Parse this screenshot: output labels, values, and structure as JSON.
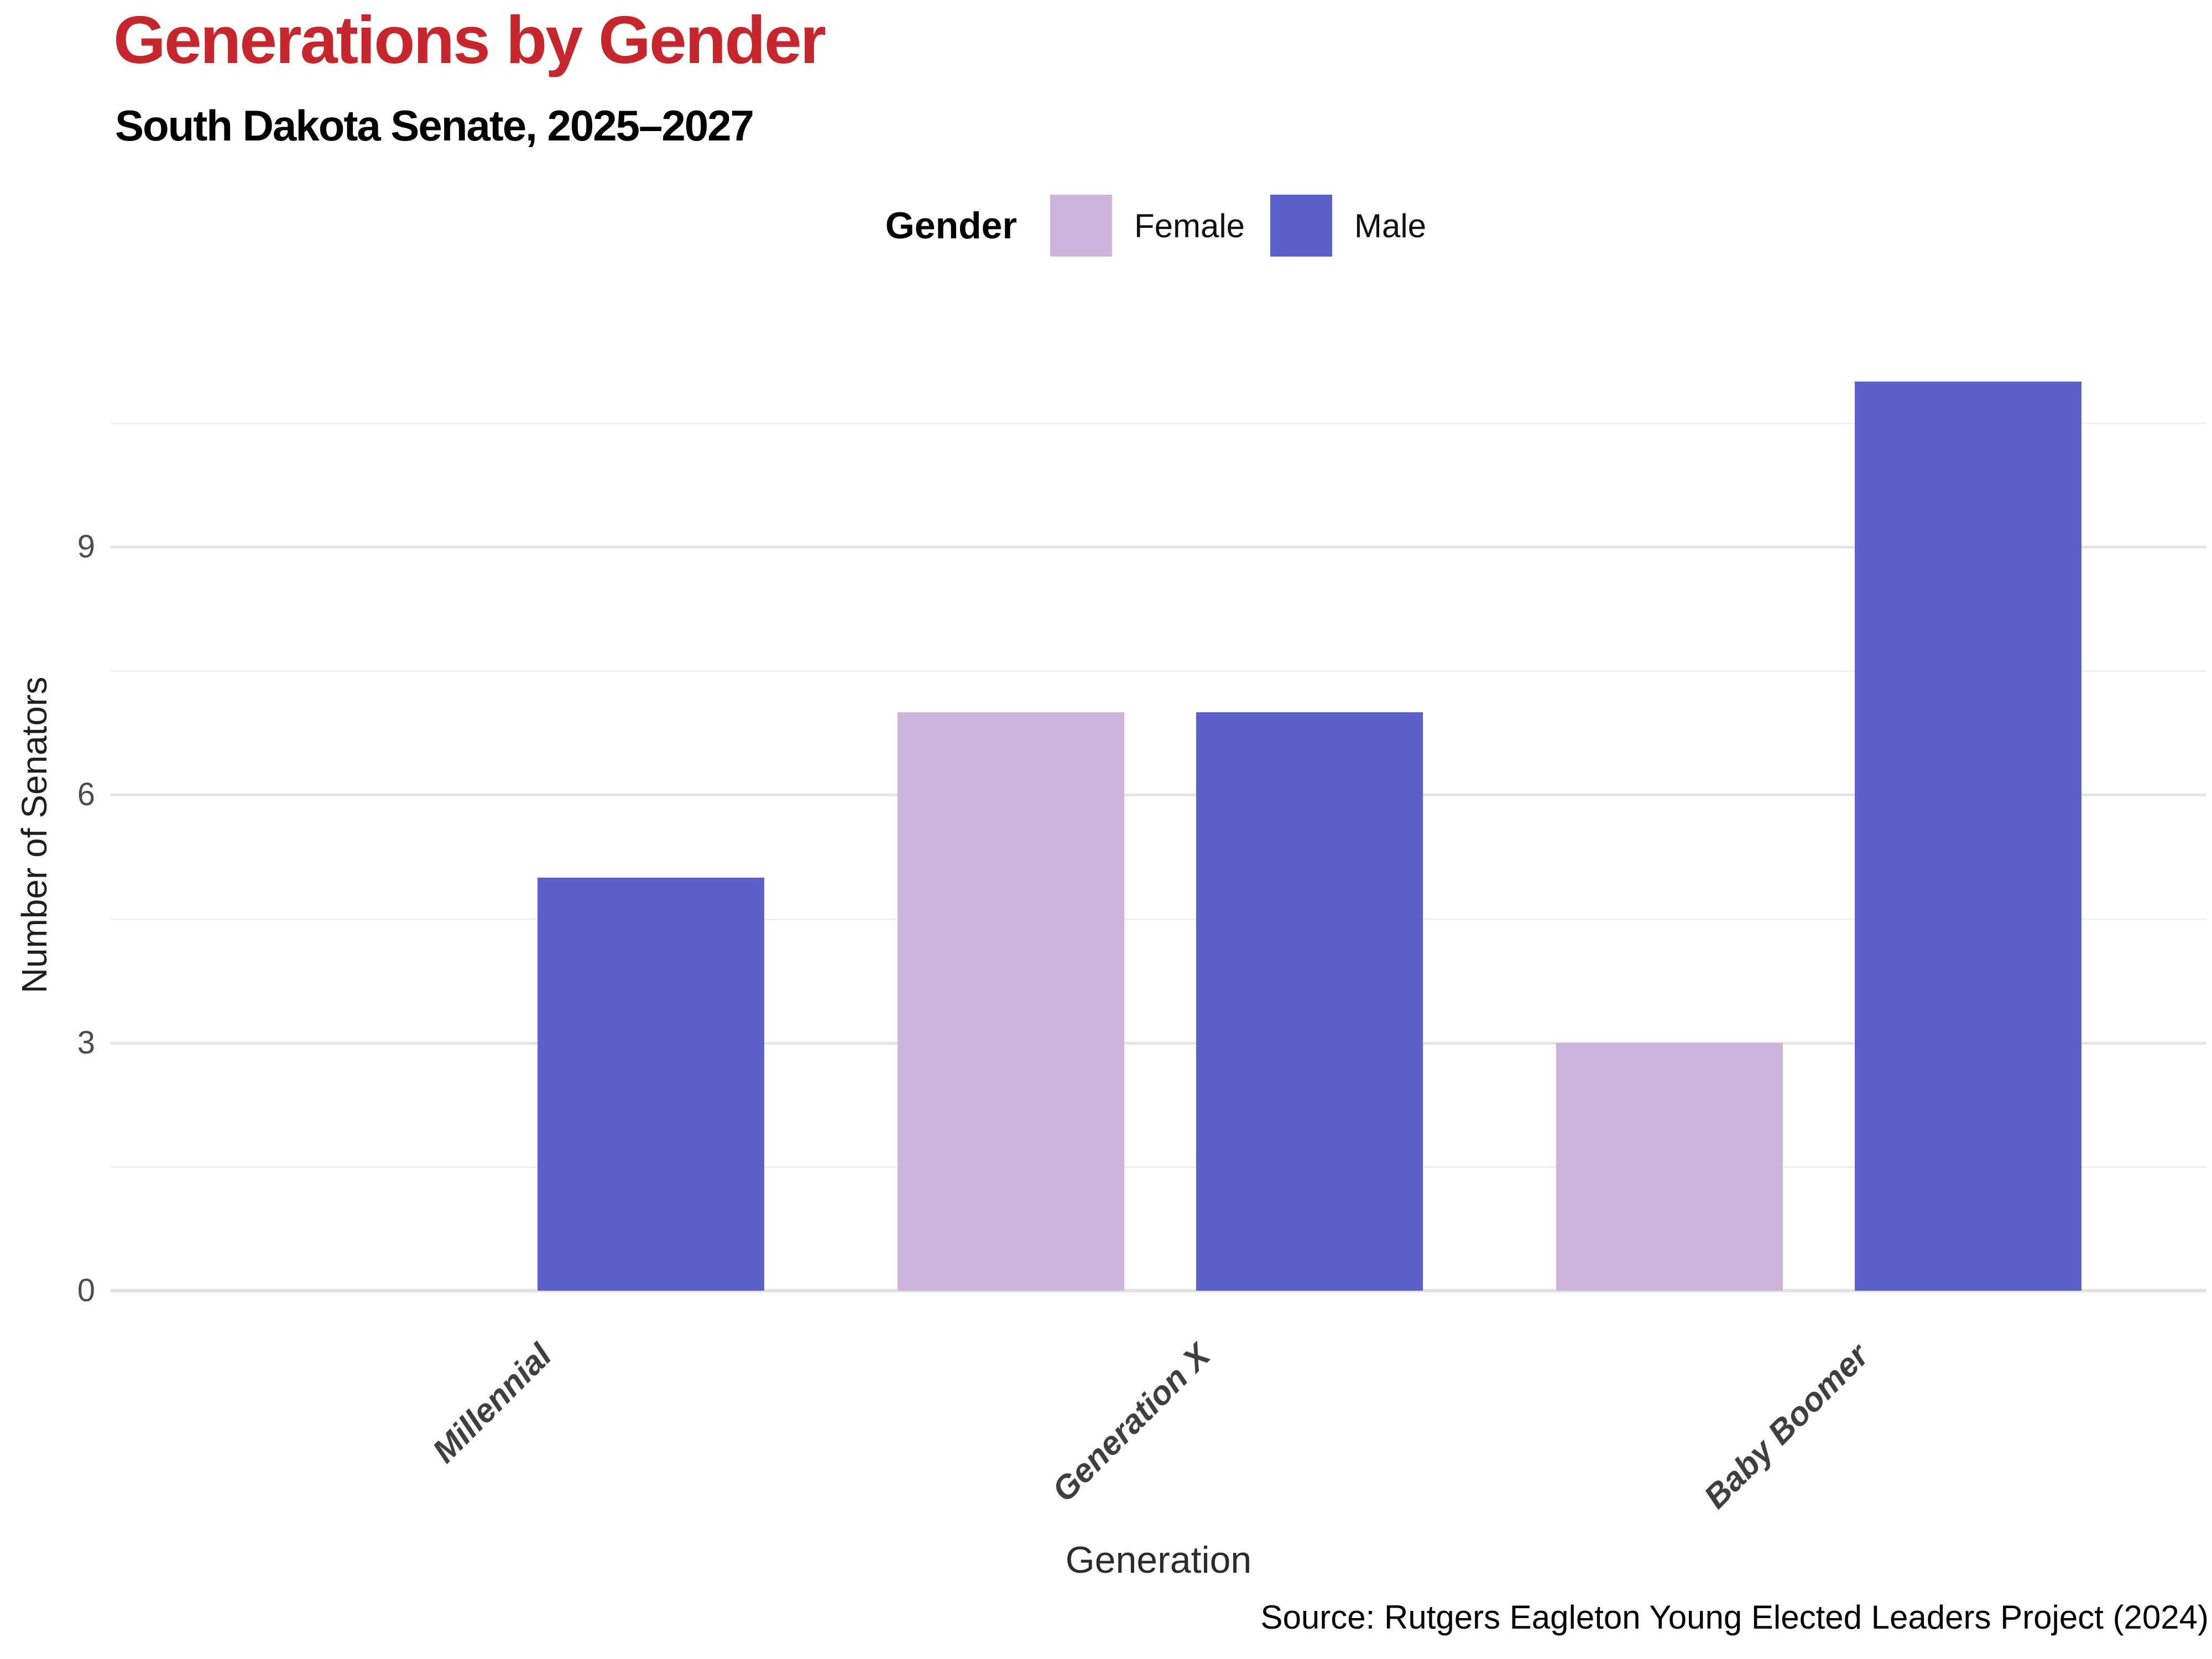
{
  "title": "Generations by Gender",
  "subtitle": "South Dakota Senate, 2025–2027",
  "legend": {
    "title": "Gender",
    "items": [
      {
        "label": "Female",
        "color": "#CDB4DC"
      },
      {
        "label": "Male",
        "color": "#5B60CB"
      }
    ]
  },
  "axes": {
    "y_title": "Number of Senators",
    "x_title": "Generation"
  },
  "source": "Source: Rutgers Eagleton Young Elected Leaders Project (2024)",
  "colors": {
    "title_accent": "#C6262C",
    "female": "#CDB4DC",
    "male": "#5B60CB",
    "grid_major": "#e4e4e4",
    "grid_minor": "#f0f0f0",
    "axis_line": "#e2e2e2",
    "tick_text": "#4d4d4d"
  },
  "chart_data": {
    "type": "bar",
    "title": "Generations by Gender",
    "subtitle": "South Dakota Senate, 2025–2027",
    "categories": [
      "Millennial",
      "Generation X",
      "Baby Boomer"
    ],
    "series": [
      {
        "name": "Female",
        "color": "#CDB4DC",
        "values": [
          0,
          7,
          3
        ]
      },
      {
        "name": "Male",
        "color": "#5B60CB",
        "values": [
          5,
          7,
          11
        ]
      }
    ],
    "xlabel": "Generation",
    "ylabel": "Number of Senators",
    "yticks": [
      0,
      3,
      6,
      9
    ],
    "ylim": [
      0,
      11.55
    ],
    "grid": true,
    "bar_layout": "grouped",
    "legend_position": "top-center"
  }
}
